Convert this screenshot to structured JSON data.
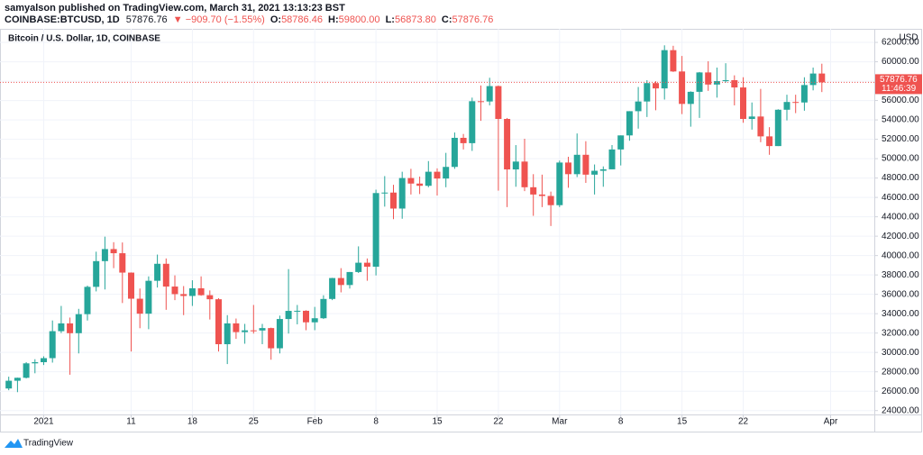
{
  "header": {
    "author_line": "samyalson published on TradingView.com, March 31, 2021 13:13:23 BST",
    "symbol": "COINBASE:BTCUSD, 1D",
    "price": "57876.76",
    "change": "▼ −909.70 (−1.55%)",
    "ohlc": [
      {
        "label": "O:",
        "value": "58786.46"
      },
      {
        "label": "H:",
        "value": "59800.00"
      },
      {
        "label": "L:",
        "value": "56873.80"
      },
      {
        "label": "C:",
        "value": "57876.76"
      }
    ]
  },
  "footer": {
    "brand": "TradingView"
  },
  "chart_data": {
    "type": "candlestick",
    "title": "Bitcoin / U.S. Dollar, 1D, COINBASE",
    "currency": "USD",
    "up_color": "#26a69a",
    "down_color": "#ef5350",
    "grid": true,
    "last_price": {
      "value": 57876.76,
      "label": "57876.76"
    },
    "countdown": "11:46:39",
    "xlim": [
      "2020-12-27",
      "2021-04-06"
    ],
    "xticks": [
      {
        "value": "2021-01-01",
        "label": "2021"
      },
      {
        "value": "2021-01-11",
        "label": "11"
      },
      {
        "value": "2021-01-18",
        "label": "18"
      },
      {
        "value": "2021-01-25",
        "label": "25"
      },
      {
        "value": "2021-02-01",
        "label": "Feb"
      },
      {
        "value": "2021-02-08",
        "label": "8"
      },
      {
        "value": "2021-02-15",
        "label": "15"
      },
      {
        "value": "2021-02-22",
        "label": "22"
      },
      {
        "value": "2021-03-01",
        "label": "Mar"
      },
      {
        "value": "2021-03-08",
        "label": "8"
      },
      {
        "value": "2021-03-15",
        "label": "15"
      },
      {
        "value": "2021-03-22",
        "label": "22"
      },
      {
        "value": "2021-04-01",
        "label": "Apr"
      }
    ],
    "ylim": [
      23600,
      63400
    ],
    "yticks": [
      {
        "value": 24000,
        "label": "24000.00"
      },
      {
        "value": 26000,
        "label": "26000.00"
      },
      {
        "value": 28000,
        "label": "28000.00"
      },
      {
        "value": 30000,
        "label": "30000.00"
      },
      {
        "value": 32000,
        "label": "32000.00"
      },
      {
        "value": 34000,
        "label": "34000.00"
      },
      {
        "value": 36000,
        "label": "36000.00"
      },
      {
        "value": 38000,
        "label": "38000.00"
      },
      {
        "value": 40000,
        "label": "40000.00"
      },
      {
        "value": 42000,
        "label": "42000.00"
      },
      {
        "value": 44000,
        "label": "44000.00"
      },
      {
        "value": 46000,
        "label": "46000.00"
      },
      {
        "value": 48000,
        "label": "48000.00"
      },
      {
        "value": 50000,
        "label": "50000.00"
      },
      {
        "value": 52000,
        "label": "52000.00"
      },
      {
        "value": 54000,
        "label": "54000.00"
      },
      {
        "value": 56000,
        "label": "56000.00"
      },
      {
        "value": 58000,
        "label": "58000.00"
      },
      {
        "value": 60000,
        "label": "60000.00"
      },
      {
        "value": 62000,
        "label": "62000.00"
      }
    ],
    "x": [
      "2020-12-28",
      "2020-12-29",
      "2020-12-30",
      "2020-12-31",
      "2021-01-01",
      "2021-01-02",
      "2021-01-03",
      "2021-01-04",
      "2021-01-05",
      "2021-01-06",
      "2021-01-07",
      "2021-01-08",
      "2021-01-09",
      "2021-01-10",
      "2021-01-11",
      "2021-01-12",
      "2021-01-13",
      "2021-01-14",
      "2021-01-15",
      "2021-01-16",
      "2021-01-17",
      "2021-01-18",
      "2021-01-19",
      "2021-01-20",
      "2021-01-21",
      "2021-01-22",
      "2021-01-23",
      "2021-01-24",
      "2021-01-25",
      "2021-01-26",
      "2021-01-27",
      "2021-01-28",
      "2021-01-29",
      "2021-01-30",
      "2021-01-31",
      "2021-02-01",
      "2021-02-02",
      "2021-02-03",
      "2021-02-04",
      "2021-02-05",
      "2021-02-06",
      "2021-02-07",
      "2021-02-08",
      "2021-02-09",
      "2021-02-10",
      "2021-02-11",
      "2021-02-12",
      "2021-02-13",
      "2021-02-14",
      "2021-02-15",
      "2021-02-16",
      "2021-02-17",
      "2021-02-18",
      "2021-02-19",
      "2021-02-20",
      "2021-02-21",
      "2021-02-22",
      "2021-02-23",
      "2021-02-24",
      "2021-02-25",
      "2021-02-26",
      "2021-02-27",
      "2021-02-28",
      "2021-03-01",
      "2021-03-02",
      "2021-03-03",
      "2021-03-04",
      "2021-03-05",
      "2021-03-06",
      "2021-03-07",
      "2021-03-08",
      "2021-03-09",
      "2021-03-10",
      "2021-03-11",
      "2021-03-12",
      "2021-03-13",
      "2021-03-14",
      "2021-03-15",
      "2021-03-16",
      "2021-03-17",
      "2021-03-18",
      "2021-03-19",
      "2021-03-20",
      "2021-03-21",
      "2021-03-22",
      "2021-03-23",
      "2021-03-24",
      "2021-03-25",
      "2021-03-26",
      "2021-03-27",
      "2021-03-28",
      "2021-03-29",
      "2021-03-30",
      "2021-03-31"
    ],
    "open": [
      26281,
      27079,
      27385,
      28875,
      28995,
      29412,
      32195,
      33000,
      31988,
      33950,
      36770,
      39425,
      40670,
      40240,
      38240,
      35545,
      34000,
      37395,
      39150,
      36800,
      36020,
      35830,
      36620,
      35910,
      35490,
      30850,
      33000,
      32100,
      32280,
      32265,
      32515,
      30430,
      33450,
      34290,
      34300,
      33110,
      33530,
      35520,
      37680,
      36960,
      38300,
      39260,
      38850,
      46450,
      46500,
      44850,
      48000,
      47430,
      47200,
      48650,
      47950,
      49150,
      52150,
      51600,
      55930,
      55900,
      57490,
      54100,
      48890,
      49700,
      47050,
      46300,
      46150,
      45200,
      49600,
      48400,
      50400,
      48350,
      48750,
      48900,
      50950,
      52400,
      54900,
      55900,
      57800,
      57250,
      61200,
      59000,
      55650,
      56900,
      58900,
      57650,
      58000,
      58100,
      57350,
      54100,
      54350,
      52300,
      51300,
      55050,
      55850,
      55800,
      57600,
      58786.46
    ],
    "high": [
      27500,
      27400,
      28999,
      29300,
      29600,
      33300,
      34800,
      33600,
      34500,
      36900,
      40400,
      41950,
      41380,
      41350,
      38260,
      36600,
      37850,
      40100,
      39700,
      37950,
      36850,
      37450,
      37850,
      36400,
      35600,
      33850,
      33500,
      32950,
      34900,
      32950,
      32560,
      33800,
      38600,
      34900,
      34350,
      34700,
      35900,
      37700,
      38700,
      38300,
      40950,
      39700,
      46800,
      48200,
      47300,
      48650,
      48950,
      48150,
      49750,
      49000,
      50600,
      52700,
      52550,
      56300,
      57550,
      58350,
      57550,
      54200,
      51400,
      52050,
      48400,
      48350,
      46600,
      49800,
      50200,
      52600,
      51800,
      49400,
      49200,
      51400,
      52400,
      54900,
      57400,
      58100,
      58000,
      61700,
      61650,
      60600,
      56950,
      58950,
      60050,
      59400,
      59850,
      58600,
      58400,
      55800,
      57200,
      53250,
      55100,
      56600,
      56600,
      58400,
      59400,
      59800
    ],
    "low": [
      26100,
      25900,
      27320,
      27850,
      28700,
      28950,
      32000,
      27700,
      29900,
      33300,
      36300,
      36500,
      38700,
      35100,
      30100,
      32500,
      32400,
      36700,
      34400,
      35400,
      33850,
      34800,
      35850,
      33400,
      30100,
      28800,
      31400,
      30900,
      31950,
      30850,
      29250,
      29900,
      31950,
      32900,
      32300,
      32300,
      33450,
      35400,
      36200,
      36600,
      38200,
      37400,
      37950,
      45050,
      43750,
      43800,
      46300,
      46350,
      47050,
      46200,
      47050,
      48950,
      50950,
      50800,
      53900,
      55500,
      46700,
      45000,
      47100,
      46650,
      44100,
      45000,
      43050,
      45000,
      47000,
      48100,
      47500,
      46300,
      47100,
      48900,
      49300,
      51850,
      53100,
      54300,
      55000,
      56100,
      58950,
      54600,
      53300,
      54200,
      57000,
      56300,
      57850,
      55500,
      53700,
      53000,
      51700,
      50400,
      51300,
      53950,
      54700,
      54950,
      57050,
      56873.8
    ],
    "close": [
      27079,
      27385,
      28875,
      28995,
      29412,
      32195,
      33000,
      31988,
      33950,
      36770,
      39425,
      40670,
      40240,
      38240,
      35545,
      34000,
      37395,
      39150,
      36800,
      36020,
      35830,
      36620,
      35910,
      35490,
      30850,
      33000,
      32100,
      32280,
      32265,
      32515,
      30430,
      33450,
      34290,
      34300,
      33110,
      33530,
      35520,
      37680,
      36960,
      38300,
      39260,
      38850,
      46450,
      46500,
      44850,
      48000,
      47430,
      47200,
      48650,
      47950,
      49150,
      52150,
      51600,
      55930,
      55900,
      57490,
      54100,
      48890,
      49700,
      47050,
      46300,
      46150,
      45200,
      49600,
      48400,
      50400,
      48350,
      48750,
      48900,
      50950,
      52400,
      54900,
      55900,
      57800,
      57250,
      61200,
      59000,
      55650,
      56900,
      58900,
      57650,
      58000,
      58100,
      57350,
      54100,
      54350,
      52300,
      51300,
      55050,
      55850,
      55800,
      57600,
      58786.46,
      57876.76
    ]
  }
}
